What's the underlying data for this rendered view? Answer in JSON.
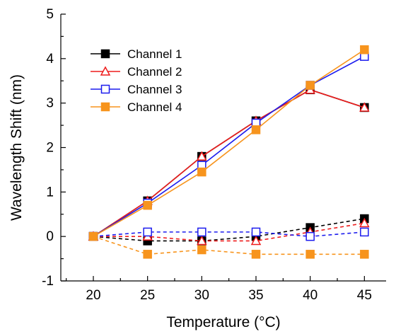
{
  "chart_data": {
    "type": "line",
    "xlabel": "Temperature (°C)",
    "ylabel": "Wavelength Shift (nm)",
    "xlim": [
      17,
      47
    ],
    "ylim": [
      -1,
      5
    ],
    "xticks": [
      20,
      25,
      30,
      35,
      40,
      45
    ],
    "yticks": [
      -1,
      0,
      1,
      2,
      3,
      4,
      5
    ],
    "grid": false,
    "legend_position": "top-left",
    "series": [
      {
        "name": "Channel 1",
        "color": "#000000",
        "marker": "filled-square",
        "group": "solid",
        "x": [
          20,
          25,
          30,
          35,
          40,
          45
        ],
        "values": [
          0,
          0.8,
          1.8,
          2.6,
          3.3,
          2.9
        ]
      },
      {
        "name": "Channel 2",
        "color": "#ee1c1c",
        "marker": "open-triangle",
        "group": "solid",
        "x": [
          20,
          25,
          30,
          35,
          40,
          45
        ],
        "values": [
          0,
          0.8,
          1.8,
          2.6,
          3.3,
          2.9
        ]
      },
      {
        "name": "Channel 3",
        "color": "#1c1cee",
        "marker": "open-square",
        "group": "solid",
        "x": [
          20,
          25,
          30,
          35,
          40,
          45
        ],
        "values": [
          0,
          0.75,
          1.6,
          2.55,
          3.4,
          4.05
        ]
      },
      {
        "name": "Channel 4",
        "color": "#f7941d",
        "marker": "filled-square",
        "group": "solid",
        "x": [
          20,
          25,
          30,
          35,
          40,
          45
        ],
        "values": [
          0,
          0.7,
          1.45,
          2.4,
          3.4,
          4.2
        ]
      },
      {
        "name": "",
        "color": "#000000",
        "marker": "filled-square",
        "group": "dashed",
        "x": [
          20,
          25,
          30,
          35,
          40,
          45
        ],
        "values": [
          0,
          -0.1,
          -0.1,
          0,
          0.2,
          0.4
        ]
      },
      {
        "name": "",
        "color": "#ee1c1c",
        "marker": "open-triangle",
        "group": "dashed",
        "x": [
          20,
          25,
          30,
          35,
          40,
          45
        ],
        "values": [
          0,
          0,
          -0.1,
          -0.1,
          0.1,
          0.3
        ]
      },
      {
        "name": "",
        "color": "#1c1cee",
        "marker": "open-square",
        "group": "dashed",
        "x": [
          20,
          25,
          30,
          35,
          40,
          45
        ],
        "values": [
          0,
          0.1,
          0.1,
          0.1,
          0,
          0.1
        ]
      },
      {
        "name": "",
        "color": "#f7941d",
        "marker": "filled-square",
        "group": "dashed",
        "x": [
          20,
          25,
          30,
          35,
          40,
          45
        ],
        "values": [
          0,
          -0.4,
          -0.3,
          -0.4,
          -0.4,
          -0.4
        ]
      }
    ]
  }
}
